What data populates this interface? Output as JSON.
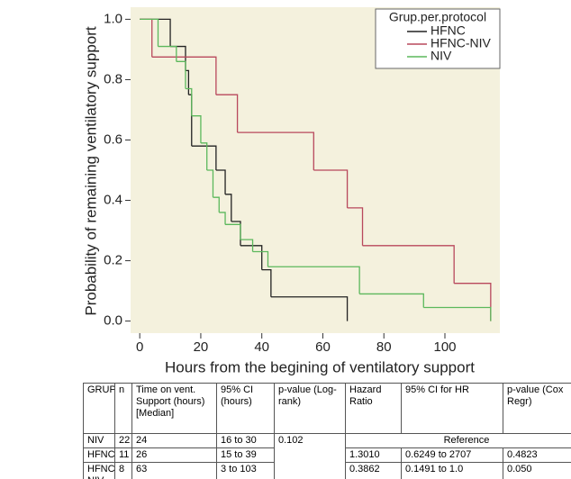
{
  "chart_data": {
    "type": "step",
    "xlabel": "Hours from the begining of ventilatory support",
    "ylabel": "Probability of remaining ventilatory support",
    "xlim": [
      -3,
      118
    ],
    "ylim": [
      -0.04,
      1.04
    ],
    "xticks": [
      0,
      20,
      40,
      60,
      80,
      100
    ],
    "yticks": [
      {
        "value": 0,
        "label": "0.0"
      },
      {
        "value": 0.2,
        "label": "0.2"
      },
      {
        "value": 0.4,
        "label": "0.4"
      },
      {
        "value": 0.6,
        "label": "0.6"
      },
      {
        "value": 0.8,
        "label": "0.8"
      },
      {
        "value": 1,
        "label": "1.0"
      }
    ],
    "legend_title": "Grup.per.protocol",
    "legend": "upper right",
    "series": [
      {
        "name": "HFNC",
        "color": "#222222",
        "x": [
          0,
          10,
          15,
          16,
          17,
          25,
          28,
          30,
          33,
          40,
          43,
          68
        ],
        "values": [
          1,
          0.91,
          0.83,
          0.75,
          0.58,
          0.5,
          0.42,
          0.33,
          0.25,
          0.17,
          0.08,
          0
        ]
      },
      {
        "name": "HFNC-NIV",
        "color": "#b8485c",
        "x": [
          0,
          4,
          25,
          32,
          57,
          68,
          73,
          103,
          115
        ],
        "values": [
          1,
          0.875,
          0.75,
          0.625,
          0.5,
          0.375,
          0.25,
          0.125,
          0
        ]
      },
      {
        "name": "NIV",
        "color": "#5cb85c",
        "x": [
          0,
          6,
          12,
          15,
          17,
          20,
          22,
          24,
          26,
          28,
          33,
          37,
          42,
          72,
          93,
          115
        ],
        "values": [
          1,
          0.91,
          0.86,
          0.77,
          0.68,
          0.59,
          0.5,
          0.41,
          0.36,
          0.32,
          0.27,
          0.23,
          0.18,
          0.09,
          0.045,
          0
        ]
      }
    ]
  },
  "table": {
    "header": [
      "GRUP",
      "n",
      "Time on vent. Support (hours) [Median]",
      "95% CI (hours)",
      "p-value (Log-rank)",
      "Hazard Ratio",
      "95% CI for HR",
      "p-value (Cox Regr)"
    ],
    "rows": [
      [
        "NIV",
        "22",
        "24",
        "16 to 30",
        "0.102",
        "Reference"
      ],
      [
        "HFNC",
        "11",
        "26",
        "15 to 39",
        "1.3010",
        "0.6249 to 2707",
        "0.4823"
      ],
      [
        "HFNC-NIV",
        "8",
        "63",
        "3 to 103",
        "0.3862",
        "0.1491 to 1.0",
        "0.050"
      ]
    ]
  }
}
